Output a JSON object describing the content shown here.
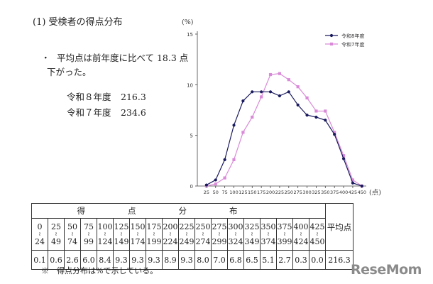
{
  "heading": "(1) 受検者の得点分布",
  "bullet": {
    "marker": "・",
    "line1": "平均点は前年度に比べて 18.3 点",
    "line2": "下がった。"
  },
  "averages": [
    {
      "label": "令和８年度",
      "value": "216.3"
    },
    {
      "label": "令和７年度",
      "value": "234.6"
    }
  ],
  "chart_data": {
    "type": "line",
    "ylabel": "(%)",
    "xlabel": "(点)",
    "ylim": [
      0,
      15
    ],
    "yticks": [
      "0",
      "5",
      "10",
      "15"
    ],
    "x": [
      25,
      50,
      75,
      100,
      125,
      150,
      175,
      200,
      225,
      250,
      275,
      300,
      325,
      350,
      375,
      400,
      425,
      450
    ],
    "series": [
      {
        "name": "令和8年度",
        "color": "#1a1a5e",
        "marker": "circle",
        "values": [
          0.1,
          0.6,
          2.6,
          6.0,
          8.4,
          9.3,
          9.3,
          9.3,
          8.9,
          9.3,
          8.0,
          7.0,
          6.8,
          6.5,
          5.1,
          2.7,
          0.3,
          0.0
        ]
      },
      {
        "name": "令和7年度",
        "color": "#d98ad8",
        "marker": "square",
        "values": [
          0.0,
          0.2,
          0.8,
          2.6,
          5.3,
          6.8,
          8.8,
          11.0,
          11.1,
          10.5,
          9.8,
          8.7,
          7.4,
          7.4,
          5.3,
          3.0,
          0.6,
          0.0
        ]
      }
    ],
    "legend_position": "top-right",
    "grid": false
  },
  "table": {
    "header_chars": [
      "得",
      "点",
      "分",
      "布"
    ],
    "avg_header": "平均点",
    "ranges": [
      [
        "0",
        "24"
      ],
      [
        "25",
        "49"
      ],
      [
        "50",
        "74"
      ],
      [
        "75",
        "99"
      ],
      [
        "100",
        "124"
      ],
      [
        "125",
        "149"
      ],
      [
        "150",
        "174"
      ],
      [
        "175",
        "199"
      ],
      [
        "200",
        "224"
      ],
      [
        "225",
        "249"
      ],
      [
        "250",
        "274"
      ],
      [
        "275",
        "299"
      ],
      [
        "300",
        "324"
      ],
      [
        "325",
        "349"
      ],
      [
        "350",
        "374"
      ],
      [
        "375",
        "399"
      ],
      [
        "400",
        "424"
      ],
      [
        "425",
        "450"
      ]
    ],
    "tilde": "≀",
    "values": [
      "0.1",
      "0.6",
      "2.6",
      "6.0",
      "8.4",
      "9.3",
      "9.3",
      "9.3",
      "8.9",
      "9.3",
      "8.0",
      "7.0",
      "6.8",
      "6.5",
      "5.1",
      "2.7",
      "0.3",
      "0.0"
    ],
    "average": "216.3"
  },
  "footnote": "※　得点分布は%で示している。",
  "watermark": "ReseMom"
}
